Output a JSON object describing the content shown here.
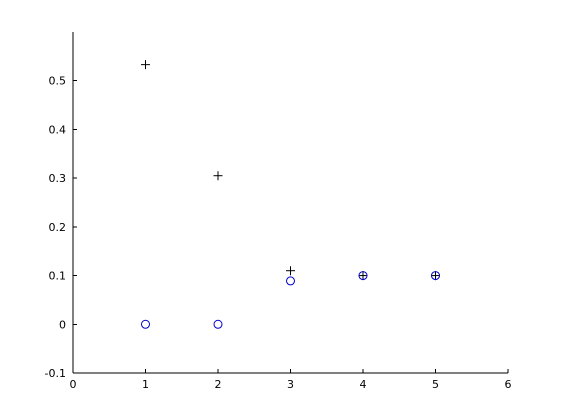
{
  "chart_data": {
    "type": "scatter",
    "title": "",
    "xlabel": "",
    "ylabel": "",
    "xlim": [
      0,
      6
    ],
    "ylim": [
      -0.1,
      0.6
    ],
    "xticks": [
      "0",
      "1",
      "2",
      "3",
      "4",
      "5",
      "6"
    ],
    "yticks": [
      "-0.1",
      "0",
      "0.1",
      "0.2",
      "0.3",
      "0.4",
      "0.5"
    ],
    "grid": false,
    "legend": "none",
    "series": [
      {
        "marker": "plus",
        "color": "#000000",
        "x": [
          1,
          2,
          3,
          4,
          5
        ],
        "y": [
          0.533,
          0.305,
          0.11,
          0.1,
          0.1
        ]
      },
      {
        "marker": "circle",
        "color": "#0000cc",
        "x": [
          1,
          2,
          3,
          4,
          5
        ],
        "y": [
          0.0,
          0.0,
          0.089,
          0.1,
          0.1
        ]
      }
    ]
  }
}
